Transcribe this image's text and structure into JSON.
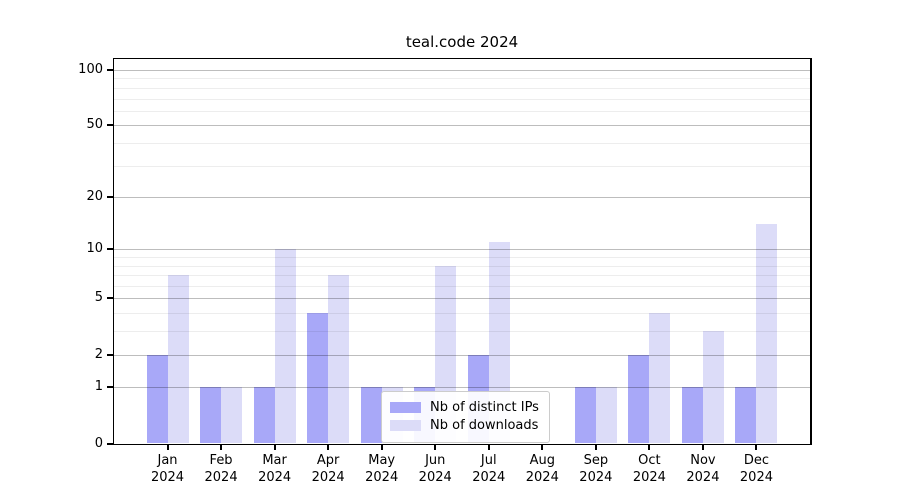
{
  "chart_data": {
    "type": "bar",
    "title": "teal.code 2024",
    "categories": [
      "Jan",
      "Feb",
      "Mar",
      "Apr",
      "May",
      "Jun",
      "Jul",
      "Aug",
      "Sep",
      "Oct",
      "Nov",
      "Dec"
    ],
    "year_label": "2024",
    "series": [
      {
        "name": "Nb of distinct IPs",
        "color": "#a8a8f8",
        "values": [
          2,
          1,
          1,
          4,
          1,
          1,
          2,
          0,
          1,
          2,
          1,
          1
        ]
      },
      {
        "name": "Nb of downloads",
        "color": "#dcdcf8",
        "values": [
          7,
          1,
          10,
          7,
          1,
          8,
          11,
          0,
          1,
          4,
          3,
          14
        ]
      }
    ],
    "yscale": "log1p",
    "ylabel": "",
    "xlabel": "",
    "y_major_ticks": [
      0,
      1,
      2,
      5,
      10,
      20,
      50,
      100
    ],
    "y_minor_gridlines": [
      3,
      4,
      6,
      7,
      8,
      9,
      30,
      40,
      60,
      70,
      80,
      90
    ],
    "ylim": [
      0,
      115
    ],
    "grid": "horizontal",
    "legend_position": "lower-center-inside"
  }
}
